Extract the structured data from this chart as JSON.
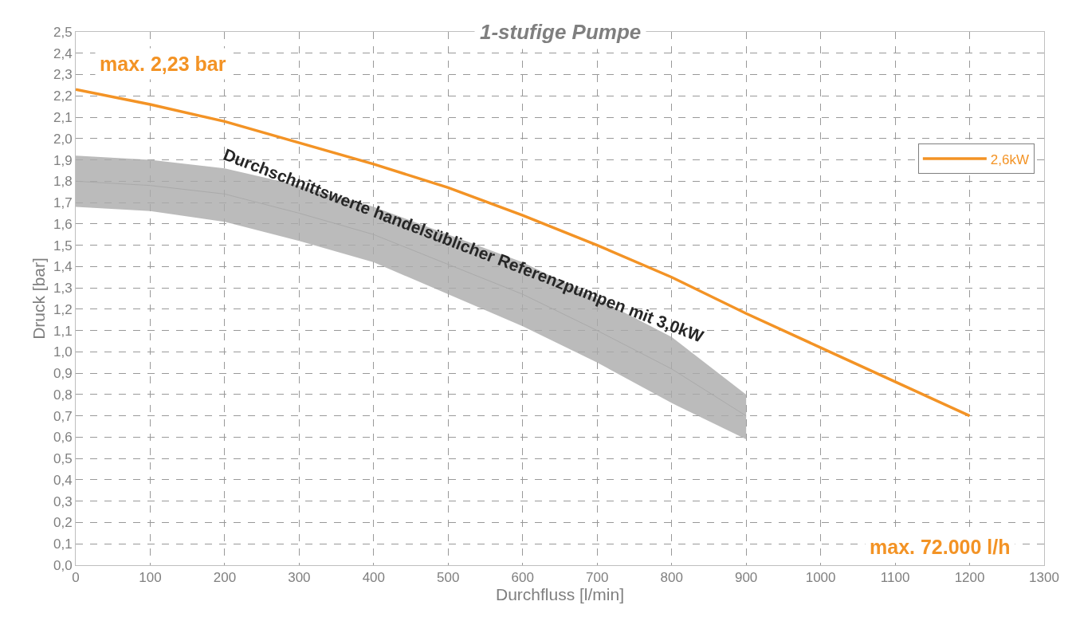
{
  "chart_data": {
    "type": "line",
    "title": "1-stufige Pumpe",
    "xlabel": "Durchfluss [l/min]",
    "ylabel": "Druck [bar]",
    "x": [
      0,
      100,
      200,
      300,
      400,
      500,
      600,
      700,
      800,
      900,
      1000,
      1100,
      1200
    ],
    "series": [
      {
        "name": "2,6kW",
        "color": "#f39325",
        "values": [
          2.23,
          2.16,
          2.08,
          1.98,
          1.88,
          1.77,
          1.64,
          1.5,
          1.35,
          1.18,
          1.02,
          0.86,
          0.7
        ]
      },
      {
        "color": "#aaaaaa",
        "x": [
          0,
          100,
          200,
          300,
          400,
          500,
          600,
          700,
          800,
          900
        ],
        "values": [
          1.8,
          1.78,
          1.74,
          1.65,
          1.55,
          1.41,
          1.27,
          1.1,
          0.92,
          0.7
        ],
        "lower": [
          1.68,
          1.66,
          1.61,
          1.52,
          1.42,
          1.27,
          1.12,
          0.95,
          0.76,
          0.59
        ],
        "upper": [
          1.92,
          1.9,
          1.86,
          1.78,
          1.68,
          1.55,
          1.42,
          1.25,
          1.07,
          0.8
        ]
      }
    ],
    "annotations": [
      "max. 2,23 bar",
      "max. 72.000 l/h",
      "Durchschnittswerte handelsüblicher Referenzpumpen mit 3,0kW"
    ],
    "xlim": [
      0,
      1300
    ],
    "xticks": [
      0,
      100,
      200,
      300,
      400,
      500,
      600,
      700,
      800,
      900,
      1000,
      1100,
      1200,
      1300
    ],
    "ylim": [
      0,
      2.5
    ],
    "yticks": [
      {
        "value": 0,
        "label": "0,0"
      },
      {
        "value": 0.1,
        "label": "0,1"
      },
      {
        "value": 0.2,
        "label": "0,2"
      },
      {
        "value": 0.3,
        "label": "0,3"
      },
      {
        "value": 0.4,
        "label": "0,4"
      },
      {
        "value": 0.5,
        "label": "0,5"
      },
      {
        "value": 0.6,
        "label": "0,6"
      },
      {
        "value": 0.7,
        "label": "0,7"
      },
      {
        "value": 0.8,
        "label": "0,8"
      },
      {
        "value": 0.9,
        "label": "0,9"
      },
      {
        "value": 1.0,
        "label": "1,0"
      },
      {
        "value": 1.1,
        "label": "1,1"
      },
      {
        "value": 1.2,
        "label": "1,2"
      },
      {
        "value": 1.3,
        "label": "1,3"
      },
      {
        "value": 1.4,
        "label": "1,4"
      },
      {
        "value": 1.5,
        "label": "1,5"
      },
      {
        "value": 1.6,
        "label": "1,6"
      },
      {
        "value": 1.7,
        "label": "1,7"
      },
      {
        "value": 1.8,
        "label": "1,8"
      },
      {
        "value": 1.9,
        "label": "1,9"
      },
      {
        "value": 2.0,
        "label": "2,0"
      },
      {
        "value": 2.1,
        "label": "2,1"
      },
      {
        "value": 2.2,
        "label": "2,2"
      },
      {
        "value": 2.3,
        "label": "2,3"
      },
      {
        "value": 2.4,
        "label": "2,4"
      },
      {
        "value": 2.5,
        "label": "2,5"
      }
    ],
    "grid": true,
    "legend": "top right",
    "marker": "none",
    "line_style": "solid"
  }
}
